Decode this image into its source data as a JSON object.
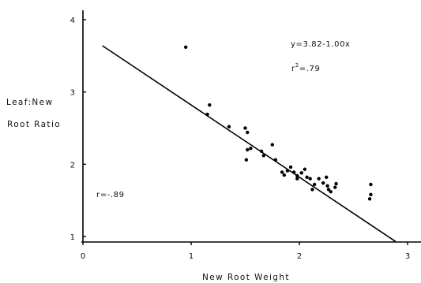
{
  "chart_data": {
    "type": "scatter",
    "title": "",
    "xlabel": "New Root Weight",
    "ylabel_lines": [
      "Leaf:New",
      "Root Ratio"
    ],
    "xlim": [
      0,
      3
    ],
    "ylim": [
      1,
      4
    ],
    "x_ticks": [
      0,
      1,
      2,
      3
    ],
    "y_ticks": [
      1,
      2,
      3,
      4
    ],
    "x_tick_labels": [
      "0",
      "1",
      "2",
      "3"
    ],
    "y_tick_labels": [
      "1",
      "2",
      "3",
      "4"
    ],
    "grid": false,
    "regression": {
      "intercept": 3.82,
      "slope": -1.0,
      "x_range": [
        0.18,
        2.89
      ],
      "equation_label": "y=3.82-1.00x",
      "r2_label_base": "r",
      "r2_label_exp": "2",
      "r2_label_value": "=.79"
    },
    "correlation_label": "r=-.89",
    "series": [
      {
        "points": [
          [
            0.95,
            3.62
          ],
          [
            1.17,
            2.82
          ],
          [
            1.15,
            2.69
          ],
          [
            1.35,
            2.52
          ],
          [
            1.5,
            2.5
          ],
          [
            1.52,
            2.44
          ],
          [
            1.52,
            2.2
          ],
          [
            1.55,
            2.22
          ],
          [
            1.51,
            2.06
          ],
          [
            1.65,
            2.18
          ],
          [
            1.67,
            2.12
          ],
          [
            1.75,
            2.27
          ],
          [
            1.78,
            2.06
          ],
          [
            1.84,
            1.89
          ],
          [
            1.86,
            1.85
          ],
          [
            1.89,
            1.91
          ],
          [
            1.92,
            1.96
          ],
          [
            1.95,
            1.89
          ],
          [
            1.98,
            1.84
          ],
          [
            1.98,
            1.8
          ],
          [
            2.02,
            1.88
          ],
          [
            2.05,
            1.93
          ],
          [
            2.07,
            1.82
          ],
          [
            2.1,
            1.8
          ],
          [
            2.12,
            1.65
          ],
          [
            2.14,
            1.72
          ],
          [
            2.18,
            1.8
          ],
          [
            2.22,
            1.74
          ],
          [
            2.25,
            1.82
          ],
          [
            2.26,
            1.7
          ],
          [
            2.27,
            1.65
          ],
          [
            2.29,
            1.62
          ],
          [
            2.33,
            1.68
          ],
          [
            2.34,
            1.73
          ],
          [
            2.66,
            1.72
          ],
          [
            2.66,
            1.58
          ],
          [
            2.65,
            1.52
          ]
        ]
      }
    ]
  }
}
